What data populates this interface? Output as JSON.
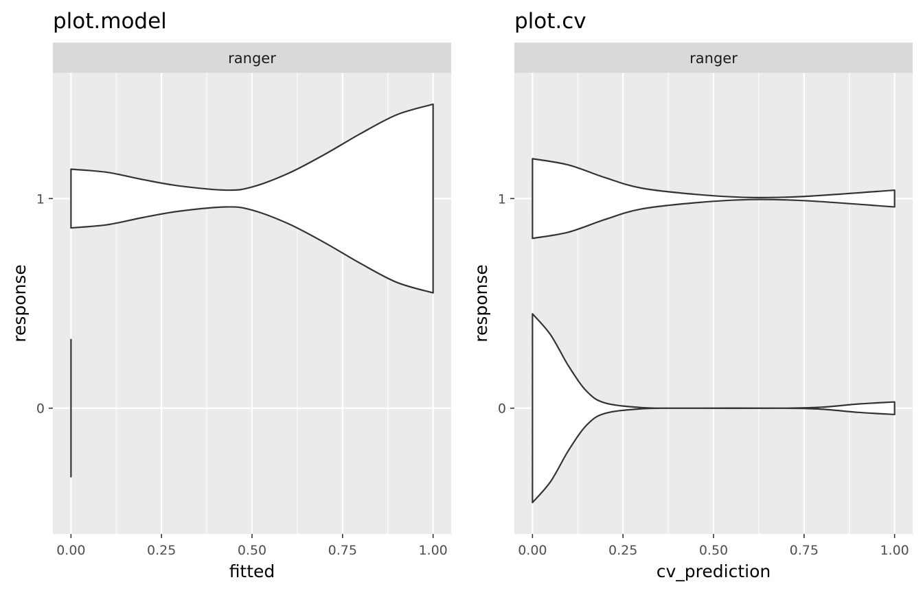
{
  "chart_data": [
    {
      "type": "violin",
      "title": "plot.model",
      "facet_label": "ranger",
      "xlabel": "fitted",
      "ylabel": "response",
      "xlim": [
        -0.05,
        1.05
      ],
      "ylim": [
        -0.6,
        1.6
      ],
      "x_ticks": [
        "0.00",
        "0.25",
        "0.50",
        "0.75",
        "1.00"
      ],
      "y_ticks": [
        "0",
        "1"
      ],
      "grid": true,
      "violins": [
        {
          "category": "0",
          "profile": [
            [
              0.0,
              0.0
            ]
          ]
        },
        {
          "category": "1",
          "profile": [
            [
              0.0,
              0.14
            ],
            [
              0.1,
              0.125
            ],
            [
              0.2,
              0.09
            ],
            [
              0.3,
              0.06
            ],
            [
              0.43,
              0.04
            ],
            [
              0.5,
              0.055
            ],
            [
              0.6,
              0.12
            ],
            [
              0.7,
              0.21
            ],
            [
              0.8,
              0.31
            ],
            [
              0.9,
              0.4
            ],
            [
              1.0,
              0.45
            ]
          ]
        }
      ]
    },
    {
      "type": "violin",
      "title": "plot.cv",
      "facet_label": "ranger",
      "xlabel": "cv_prediction",
      "ylabel": "response",
      "xlim": [
        -0.05,
        1.05
      ],
      "ylim": [
        -0.6,
        1.6
      ],
      "x_ticks": [
        "0.00",
        "0.25",
        "0.50",
        "0.75",
        "1.00"
      ],
      "y_ticks": [
        "0",
        "1"
      ],
      "grid": true,
      "violins": [
        {
          "category": "0",
          "profile": [
            [
              0.0,
              0.45
            ],
            [
              0.05,
              0.35
            ],
            [
              0.1,
              0.2
            ],
            [
              0.15,
              0.08
            ],
            [
              0.2,
              0.025
            ],
            [
              0.3,
              0.003
            ],
            [
              0.4,
              0.0
            ],
            [
              0.7,
              0.0
            ],
            [
              0.8,
              0.005
            ],
            [
              0.9,
              0.02
            ],
            [
              1.0,
              0.03
            ]
          ]
        },
        {
          "category": "1",
          "profile": [
            [
              0.0,
              0.19
            ],
            [
              0.1,
              0.16
            ],
            [
              0.2,
              0.1
            ],
            [
              0.3,
              0.05
            ],
            [
              0.45,
              0.02
            ],
            [
              0.6,
              0.005
            ],
            [
              0.75,
              0.01
            ],
            [
              1.0,
              0.04
            ]
          ]
        }
      ]
    }
  ]
}
